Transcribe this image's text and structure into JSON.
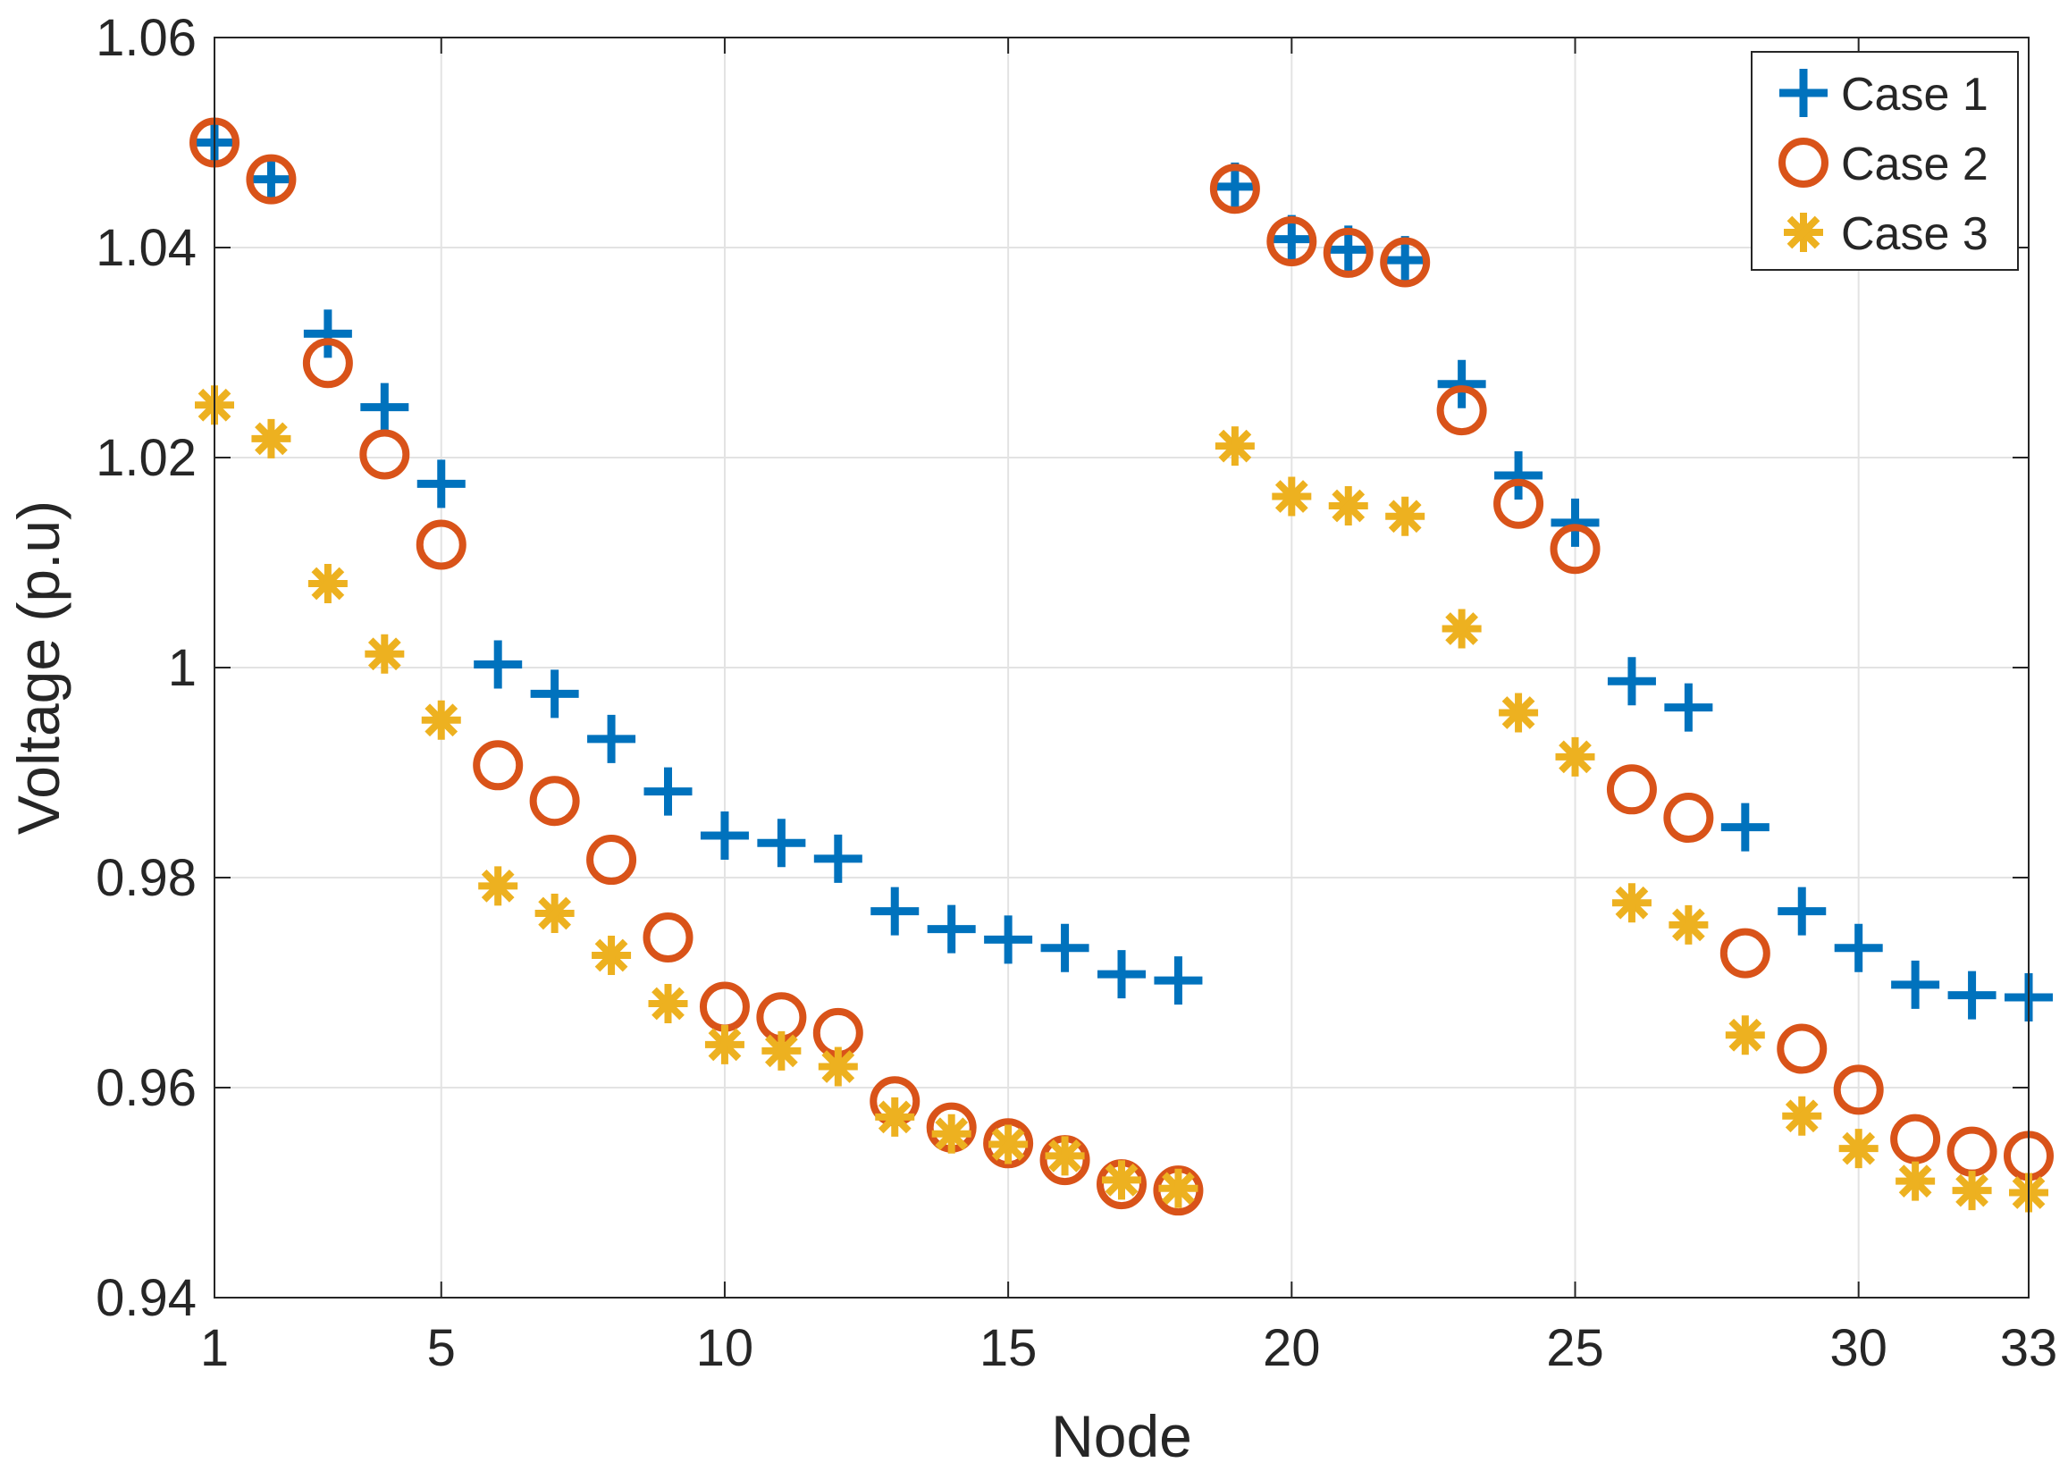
{
  "chart_data": {
    "type": "scatter",
    "xlabel": "Node",
    "ylabel": "Voltage (p.u)",
    "xlim": [
      1,
      33
    ],
    "ylim": [
      0.94,
      1.06
    ],
    "xticks": [
      1,
      5,
      10,
      15,
      20,
      25,
      30,
      33
    ],
    "yticks": [
      0.94,
      0.96,
      0.98,
      1.0,
      1.02,
      1.04,
      1.06
    ],
    "ytick_labels": [
      "0.94",
      "0.96",
      "0.98",
      "1",
      "1.02",
      "1.04",
      "1.06"
    ],
    "grid": true,
    "legend_position": "top-right",
    "x": [
      1,
      2,
      3,
      4,
      5,
      6,
      7,
      8,
      9,
      10,
      11,
      12,
      13,
      14,
      15,
      16,
      17,
      18,
      19,
      20,
      21,
      22,
      23,
      24,
      25,
      26,
      27,
      28,
      29,
      30,
      31,
      32,
      33
    ],
    "series": [
      {
        "name": "Case 1",
        "marker": "plus",
        "color": "#0072BD",
        "values": [
          1.05,
          1.0465,
          1.0318,
          1.0248,
          1.0175,
          1.0003,
          0.9975,
          0.9932,
          0.9882,
          0.984,
          0.9833,
          0.9818,
          0.9768,
          0.9751,
          0.9741,
          0.9733,
          0.9708,
          0.9702,
          1.0458,
          1.0408,
          1.0398,
          1.0388,
          1.027,
          1.0183,
          1.0138,
          0.9987,
          0.9962,
          0.9848,
          0.9768,
          0.9733,
          0.9698,
          0.9688,
          0.9686
        ]
      },
      {
        "name": "Case 2",
        "marker": "circle",
        "color": "#D95319",
        "values": [
          1.05,
          1.0465,
          1.029,
          1.0203,
          1.0117,
          0.9907,
          0.9873,
          0.9817,
          0.9743,
          0.9677,
          0.9667,
          0.9652,
          0.9587,
          0.9562,
          0.9547,
          0.9531,
          0.9508,
          0.9502,
          1.0456,
          1.0406,
          1.0395,
          1.0386,
          1.0245,
          1.0156,
          1.0113,
          0.9884,
          0.9857,
          0.9728,
          0.9637,
          0.9598,
          0.9551,
          0.9539,
          0.9535
        ]
      },
      {
        "name": "Case 3",
        "marker": "asterisk",
        "color": "#EDB120",
        "values": [
          1.025,
          1.0218,
          1.008,
          1.0013,
          0.995,
          0.9792,
          0.9766,
          0.9726,
          0.968,
          0.9641,
          0.9635,
          0.962,
          0.9572,
          0.9556,
          0.9546,
          0.9535,
          0.9512,
          0.9504,
          1.0211,
          1.0163,
          1.0154,
          1.0144,
          1.0037,
          0.9957,
          0.9915,
          0.9776,
          0.9755,
          0.965,
          0.9573,
          0.9542,
          0.9511,
          0.9502,
          0.95
        ]
      }
    ]
  }
}
